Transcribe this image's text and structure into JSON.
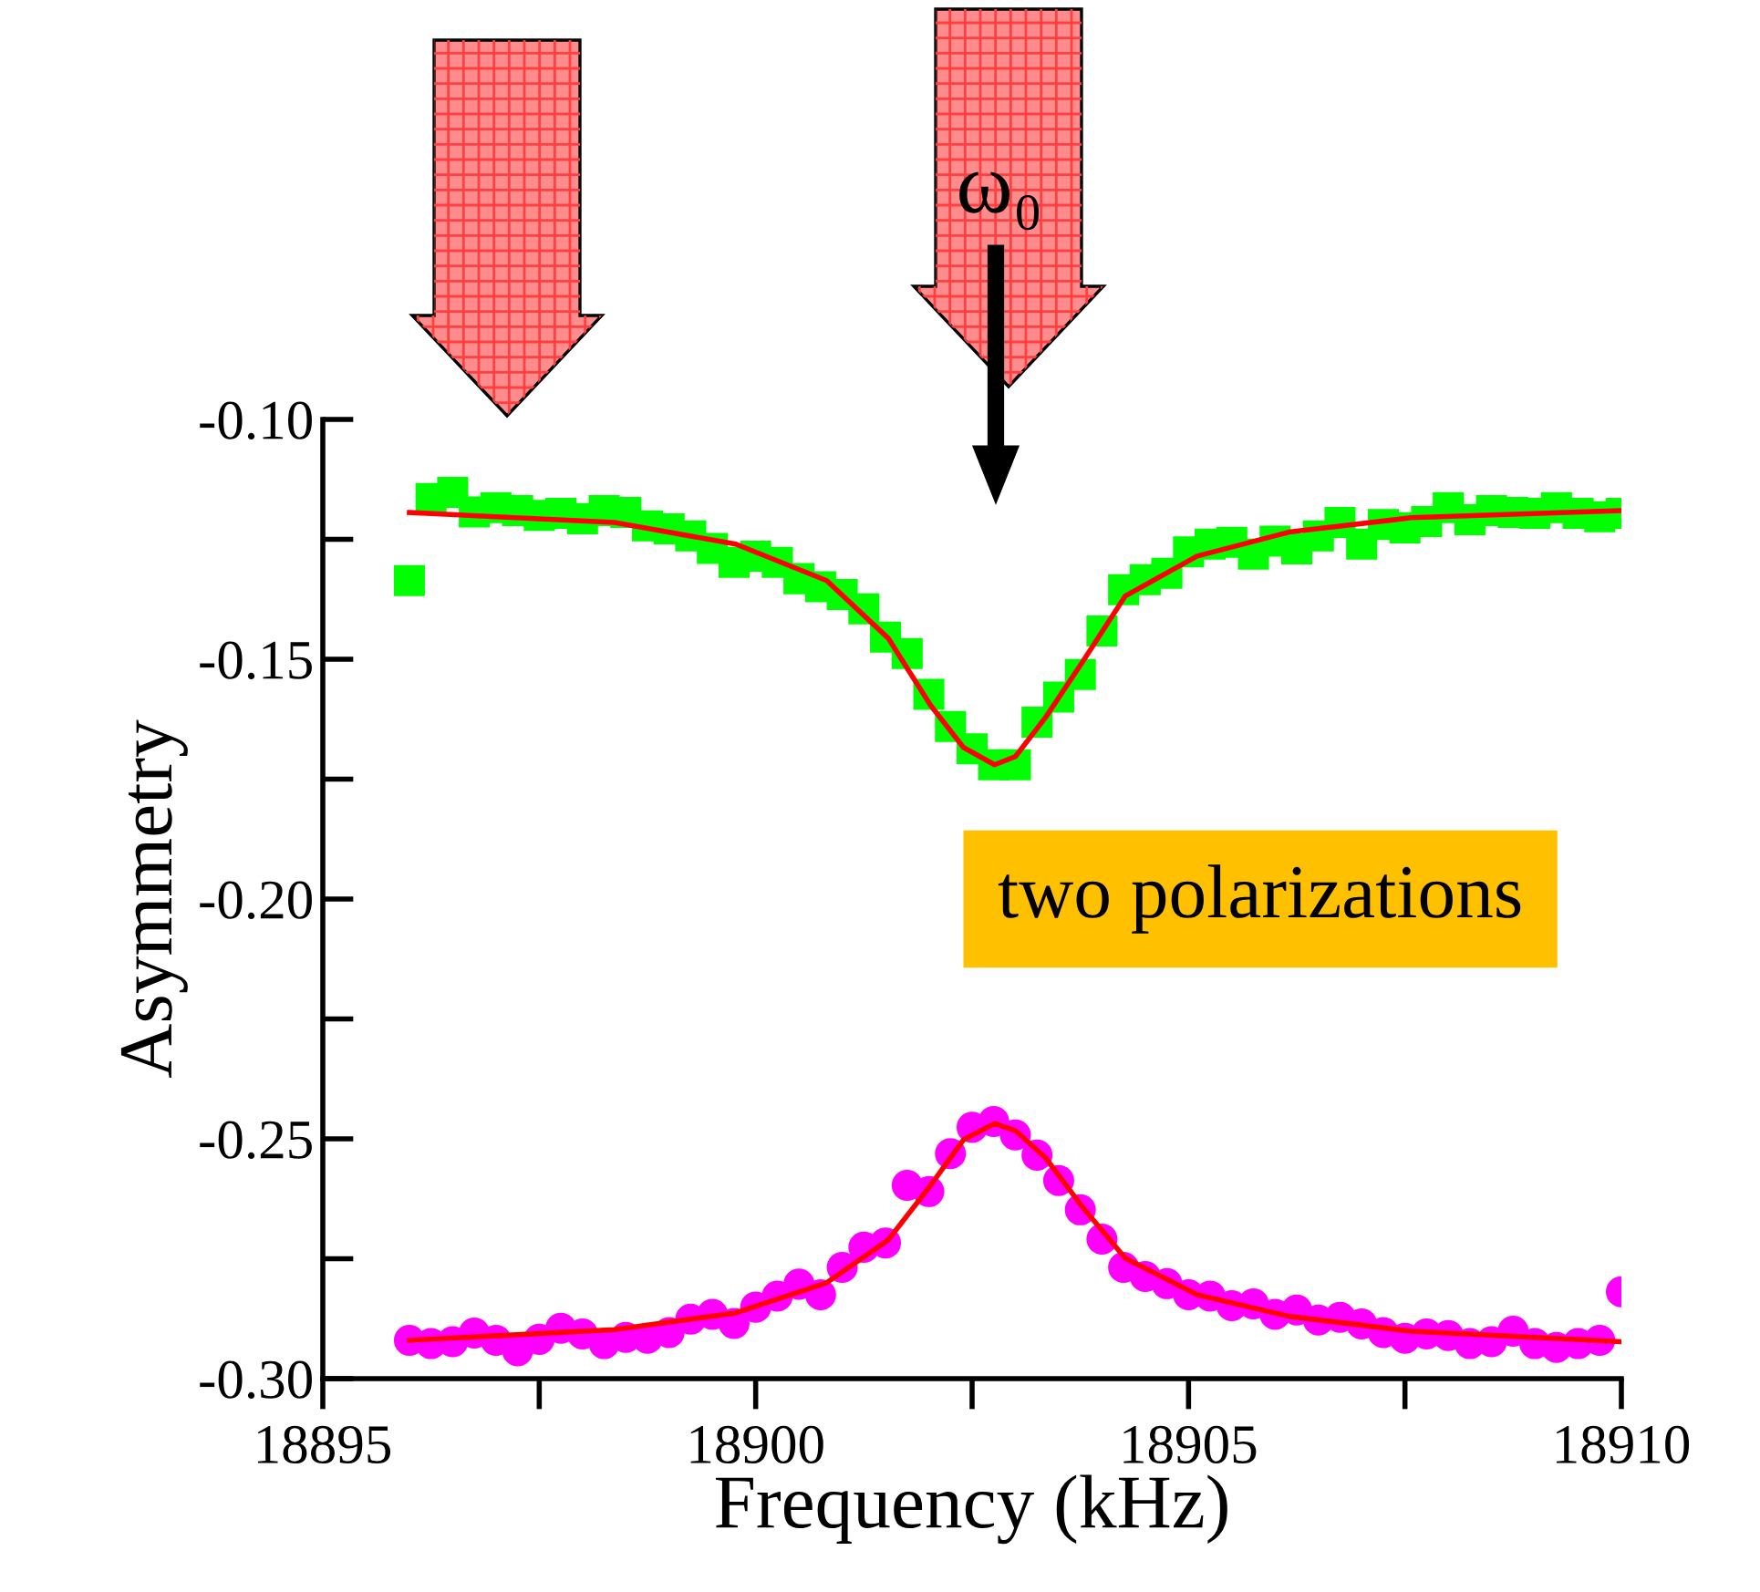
{
  "chart_data": {
    "type": "scatter",
    "xlabel": "Frequency (kHz)",
    "ylabel": "Asymmetry",
    "xlim": [
      18895,
      18910
    ],
    "ylim": [
      -0.3,
      -0.1
    ],
    "xticks": [
      18895,
      18900,
      18905,
      18910
    ],
    "yticks": [
      {
        "value": -0.3,
        "label": "-0.30"
      },
      {
        "value": -0.25,
        "label": "-0.25"
      },
      {
        "value": -0.2,
        "label": "-0.20"
      },
      {
        "value": -0.15,
        "label": "-0.15"
      },
      {
        "value": -0.1,
        "label": "-0.10"
      }
    ],
    "grid": false,
    "legend": false,
    "series": [
      {
        "type": "scatter",
        "marker": "square",
        "color": "#00ff00",
        "x": [
          18896,
          18896.25,
          18896.5,
          18896.75,
          18897,
          18897.25,
          18897.5,
          18897.75,
          18898,
          18898.25,
          18898.5,
          18898.75,
          18899,
          18899.25,
          18899.5,
          18899.75,
          18900,
          18900.25,
          18900.5,
          18900.75,
          18901,
          18901.25,
          18901.5,
          18901.75,
          18902,
          18902.25,
          18902.5,
          18902.75,
          18903,
          18903.25,
          18903.5,
          18903.75,
          18904,
          18904.25,
          18904.5,
          18904.75,
          18905,
          18905.25,
          18905.5,
          18905.75,
          18906,
          18906.25,
          18906.5,
          18906.75,
          18907,
          18907.25,
          18907.5,
          18907.75,
          18908,
          18908.25,
          18908.5,
          18908.75,
          18909,
          18909.25,
          18909.5,
          18909.75,
          18910
        ],
        "values": [
          -0.1336,
          -0.1165,
          -0.1152,
          -0.1193,
          -0.1184,
          -0.119,
          -0.12,
          -0.1196,
          -0.1207,
          -0.119,
          -0.1194,
          -0.1222,
          -0.1228,
          -0.1243,
          -0.1269,
          -0.1298,
          -0.1285,
          -0.1298,
          -0.1332,
          -0.1349,
          -0.1365,
          -0.1395,
          -0.1454,
          -0.1488,
          -0.1573,
          -0.164,
          -0.1687,
          -0.172,
          -0.172,
          -0.1631,
          -0.1579,
          -0.1532,
          -0.1441,
          -0.1355,
          -0.1334,
          -0.1321,
          -0.1276,
          -0.126,
          -0.1256,
          -0.1281,
          -0.1254,
          -0.127,
          -0.1243,
          -0.1215,
          -0.126,
          -0.1219,
          -0.1226,
          -0.1213,
          -0.1184,
          -0.1209,
          -0.119,
          -0.1194,
          -0.1196,
          -0.1184,
          -0.1196,
          -0.1203,
          -0.1196
        ]
      },
      {
        "type": "scatter",
        "marker": "circle",
        "color": "#ff00ff",
        "x": [
          18896,
          18896.25,
          18896.5,
          18896.75,
          18897,
          18897.25,
          18897.5,
          18897.75,
          18898,
          18898.25,
          18898.5,
          18898.75,
          18899,
          18899.25,
          18899.5,
          18899.75,
          18900,
          18900.25,
          18900.5,
          18900.75,
          18901,
          18901.25,
          18901.5,
          18901.75,
          18902,
          18902.25,
          18902.5,
          18902.75,
          18903,
          18903.25,
          18903.5,
          18903.75,
          18904,
          18904.25,
          18904.5,
          18904.75,
          18905,
          18905.25,
          18905.5,
          18905.75,
          18906,
          18906.25,
          18906.5,
          18906.75,
          18907,
          18907.25,
          18907.5,
          18907.75,
          18908,
          18908.25,
          18908.5,
          18908.75,
          18909,
          18909.25,
          18909.5,
          18909.75,
          18910
        ],
        "values": [
          -0.292,
          -0.2927,
          -0.2923,
          -0.2905,
          -0.292,
          -0.2942,
          -0.2918,
          -0.2895,
          -0.2907,
          -0.2927,
          -0.2914,
          -0.2916,
          -0.2904,
          -0.2876,
          -0.2866,
          -0.2885,
          -0.2851,
          -0.2828,
          -0.2803,
          -0.2825,
          -0.2768,
          -0.2726,
          -0.2717,
          -0.2597,
          -0.261,
          -0.2531,
          -0.2476,
          -0.2464,
          -0.2492,
          -0.2534,
          -0.2587,
          -0.2648,
          -0.2709,
          -0.2768,
          -0.2787,
          -0.2802,
          -0.2825,
          -0.2828,
          -0.2848,
          -0.2844,
          -0.2866,
          -0.2857,
          -0.2878,
          -0.2872,
          -0.2886,
          -0.2904,
          -0.2916,
          -0.2907,
          -0.291,
          -0.2927,
          -0.2923,
          -0.2901,
          -0.2927,
          -0.2935,
          -0.2927,
          -0.292,
          -0.2819
        ]
      },
      {
        "type": "line",
        "marker": "none",
        "line_style": "solid",
        "color": "#ff0000",
        "x": [
          18896,
          18898.37,
          18899.77,
          18900.82,
          18901.53,
          18902.02,
          18902.4,
          18902.76,
          18903,
          18903.35,
          18903.77,
          18904.27,
          18905.1,
          18906.16,
          18907.57,
          18910
        ],
        "values": [
          -0.1194,
          -0.1215,
          -0.126,
          -0.1336,
          -0.1456,
          -0.1596,
          -0.1684,
          -0.172,
          -0.1703,
          -0.1621,
          -0.1507,
          -0.1368,
          -0.1285,
          -0.1235,
          -0.1205,
          -0.119
        ]
      },
      {
        "type": "line",
        "marker": "none",
        "line_style": "solid",
        "color": "#ff0000",
        "x": [
          18896,
          18898.37,
          18899.77,
          18900.82,
          18901.53,
          18902.02,
          18902.4,
          18902.76,
          18903,
          18903.35,
          18903.77,
          18904.27,
          18905.1,
          18906.16,
          18907.57,
          18910
        ],
        "values": [
          -0.292,
          -0.2898,
          -0.2863,
          -0.28,
          -0.2711,
          -0.2597,
          -0.2502,
          -0.2468,
          -0.2483,
          -0.254,
          -0.2641,
          -0.2749,
          -0.2825,
          -0.287,
          -0.2901,
          -0.2923
        ]
      }
    ],
    "annotations": [
      "ω₀",
      "two polarizations"
    ]
  }
}
